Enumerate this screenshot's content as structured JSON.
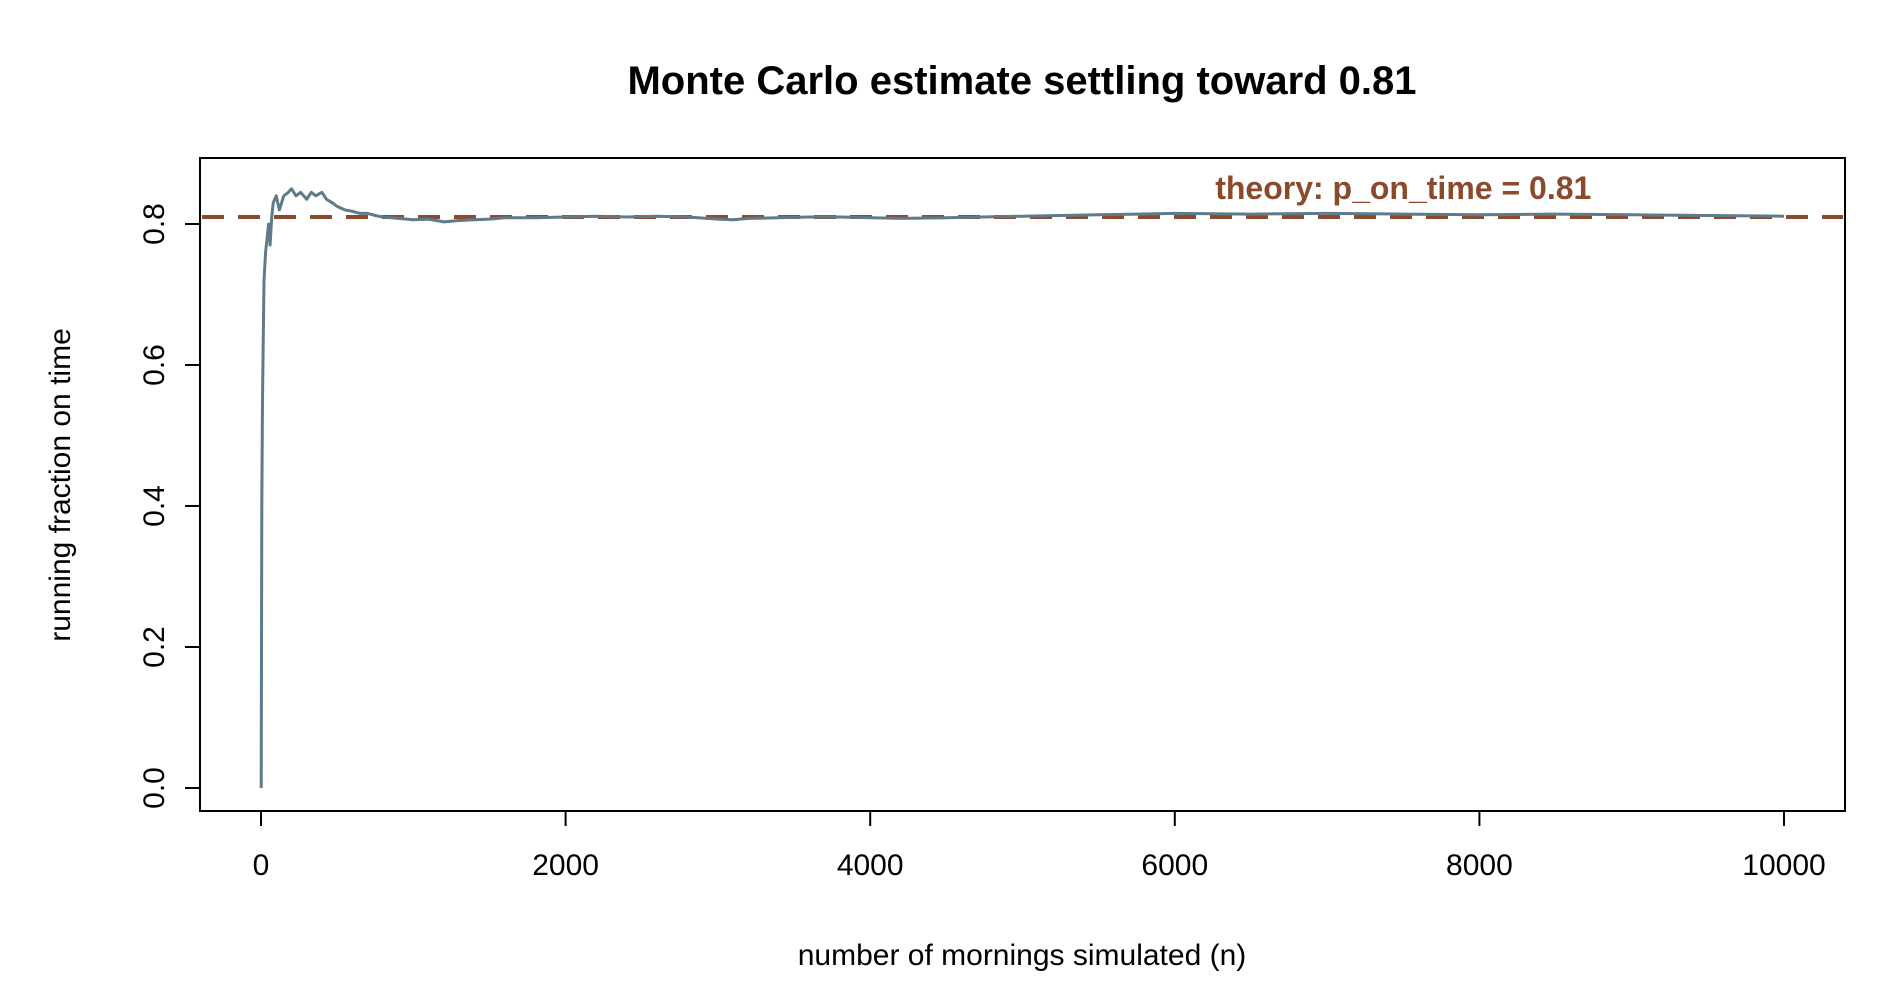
{
  "chart_data": {
    "type": "line",
    "title": "Monte Carlo estimate settling toward 0.81",
    "xlabel": "number of mornings simulated (n)",
    "ylabel": "running fraction on time",
    "xlim": [
      0,
      10000
    ],
    "ylim": [
      0,
      0.85
    ],
    "x_ticks": [
      0,
      2000,
      4000,
      6000,
      8000,
      10000
    ],
    "x_tick_labels": [
      "0",
      "2000",
      "4000",
      "6000",
      "8000",
      "10000"
    ],
    "y_ticks": [
      0.0,
      0.2,
      0.4,
      0.6,
      0.8
    ],
    "y_tick_labels": [
      "0.0",
      "0.2",
      "0.4",
      "0.6",
      "0.8"
    ],
    "grid": false,
    "series": [
      {
        "color": "#5f7a8a",
        "x": [
          1,
          5,
          10,
          20,
          30,
          40,
          50,
          60,
          70,
          80,
          100,
          120,
          150,
          180,
          200,
          230,
          260,
          300,
          330,
          360,
          400,
          430,
          470,
          500,
          550,
          600,
          650,
          700,
          750,
          800,
          900,
          1000,
          1100,
          1200,
          1300,
          1400,
          1500,
          1600,
          1800,
          2000,
          2200,
          2400,
          2600,
          2800,
          3000,
          3100,
          3200,
          3400,
          3600,
          3800,
          4000,
          4200,
          4500,
          5000,
          5500,
          6000,
          6500,
          7000,
          7500,
          8000,
          8500,
          9000,
          9500,
          10000
        ],
        "y": [
          0.0,
          0.4,
          0.55,
          0.72,
          0.76,
          0.78,
          0.8,
          0.77,
          0.81,
          0.83,
          0.84,
          0.82,
          0.84,
          0.845,
          0.85,
          0.84,
          0.845,
          0.835,
          0.845,
          0.84,
          0.845,
          0.835,
          0.83,
          0.825,
          0.82,
          0.818,
          0.815,
          0.815,
          0.812,
          0.81,
          0.808,
          0.806,
          0.807,
          0.803,
          0.805,
          0.806,
          0.807,
          0.809,
          0.809,
          0.81,
          0.811,
          0.81,
          0.811,
          0.81,
          0.807,
          0.806,
          0.808,
          0.809,
          0.81,
          0.81,
          0.809,
          0.808,
          0.809,
          0.811,
          0.813,
          0.815,
          0.814,
          0.815,
          0.814,
          0.813,
          0.814,
          0.813,
          0.812,
          0.811
        ]
      }
    ],
    "reference_line": {
      "y": 0.81,
      "color": "#8b4a2b",
      "style": "dashed",
      "label": "theory: p_on_time = 0.81",
      "label_x": 7500
    }
  }
}
